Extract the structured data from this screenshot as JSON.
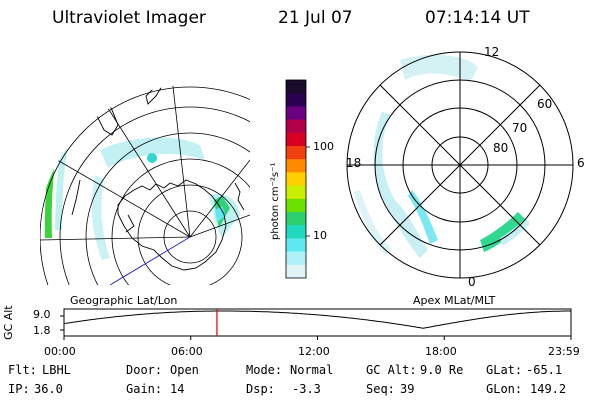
{
  "header": {
    "instrument": "Ultraviolet Imager",
    "date": "21 Jul 07",
    "time": "07:14:14 UT"
  },
  "colorbar": {
    "unit_label": "photon cm⁻²s⁻¹",
    "ticks": [
      "100",
      "10"
    ],
    "colors": [
      "#1a0a2e",
      "#2a0050",
      "#6a0080",
      "#b0004a",
      "#d60022",
      "#f04010",
      "#ff8a00",
      "#ffd000",
      "#c8f000",
      "#6ce000",
      "#2cd070",
      "#20d8c0",
      "#60e8f0",
      "#b0f0f8",
      "#e0f4f8"
    ]
  },
  "left_panel": {
    "caption": "Geographic Lat/Lon"
  },
  "right_panel": {
    "caption": "Apex MLat/MLT",
    "hour_labels": {
      "top": "12",
      "left": "18",
      "right": "6",
      "bottom": "0"
    },
    "lat_labels": [
      "60",
      "70",
      "80"
    ]
  },
  "altitude_plot": {
    "ylabel": "GC Alt",
    "y_ticks": [
      "9.0",
      "1.8"
    ],
    "x_ticks": [
      "00:00",
      "06:00",
      "12:00",
      "18:00",
      "23:59"
    ],
    "marker_color": "#e00000",
    "marker_time_hours": 7.24
  },
  "info": {
    "flt_label": "Flt:",
    "flt_value": "LBHL",
    "ip_label": "IP:",
    "ip_value": "36.0",
    "door_label": "Door:",
    "door_value": "Open",
    "gain_label": "Gain:",
    "gain_value": "14",
    "mode_label": "Mode:",
    "mode_value": "Normal",
    "dsp_label": "Dsp:",
    "dsp_value": "-3.3",
    "gcalt_label": "GC Alt:",
    "gcalt_value": "9.0 Re",
    "seq_label": "Seq:",
    "seq_value": "39",
    "glat_label": "GLat:",
    "glat_value": "-65.1",
    "glon_label": "GLon:",
    "glon_value": "149.2"
  }
}
